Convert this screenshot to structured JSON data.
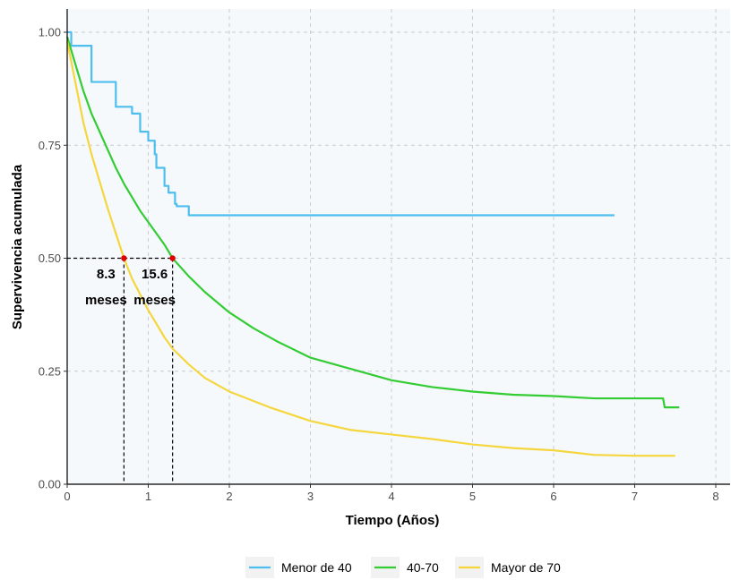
{
  "chart_data": {
    "type": "line",
    "title": "",
    "xlabel": "Tiempo (Años)",
    "ylabel": "Supervivencia acumulada",
    "xlim": [
      0,
      8
    ],
    "ylim": [
      0,
      1
    ],
    "x_ticks": [
      "0",
      "1",
      "2",
      "3",
      "4",
      "5",
      "6",
      "7",
      "8"
    ],
    "y_ticks": [
      "0.00",
      "0.25",
      "0.50",
      "0.75",
      "1.00"
    ],
    "grid": true,
    "legend_position": "bottom",
    "median_line_y": 0.5,
    "annotations": [
      {
        "value": "8.3",
        "unit": "meses",
        "x": 0.7
      },
      {
        "value": "15.6",
        "unit": "meses",
        "x": 1.3
      }
    ],
    "series": [
      {
        "name": "Menor de 40",
        "color": "#4ebeee",
        "step": true,
        "points": [
          [
            0,
            1.0
          ],
          [
            0.05,
            0.97
          ],
          [
            0.25,
            0.97
          ],
          [
            0.3,
            0.89
          ],
          [
            0.55,
            0.89
          ],
          [
            0.6,
            0.835
          ],
          [
            0.78,
            0.835
          ],
          [
            0.8,
            0.82
          ],
          [
            0.87,
            0.82
          ],
          [
            0.9,
            0.78
          ],
          [
            0.97,
            0.78
          ],
          [
            1.0,
            0.76
          ],
          [
            1.05,
            0.76
          ],
          [
            1.08,
            0.73
          ],
          [
            1.1,
            0.7
          ],
          [
            1.18,
            0.7
          ],
          [
            1.2,
            0.66
          ],
          [
            1.25,
            0.645
          ],
          [
            1.3,
            0.645
          ],
          [
            1.33,
            0.62
          ],
          [
            1.35,
            0.615
          ],
          [
            1.48,
            0.615
          ],
          [
            1.5,
            0.595
          ],
          [
            6.75,
            0.595
          ]
        ]
      },
      {
        "name": "40-70",
        "color": "#33cc33",
        "step": false,
        "points": [
          [
            0,
            0.99
          ],
          [
            0.1,
            0.93
          ],
          [
            0.2,
            0.87
          ],
          [
            0.3,
            0.82
          ],
          [
            0.4,
            0.78
          ],
          [
            0.5,
            0.74
          ],
          [
            0.6,
            0.7
          ],
          [
            0.7,
            0.665
          ],
          [
            0.8,
            0.635
          ],
          [
            0.9,
            0.605
          ],
          [
            1.0,
            0.58
          ],
          [
            1.1,
            0.555
          ],
          [
            1.2,
            0.53
          ],
          [
            1.3,
            0.5
          ],
          [
            1.4,
            0.48
          ],
          [
            1.5,
            0.46
          ],
          [
            1.7,
            0.425
          ],
          [
            2.0,
            0.38
          ],
          [
            2.3,
            0.345
          ],
          [
            2.6,
            0.315
          ],
          [
            3.0,
            0.28
          ],
          [
            3.5,
            0.255
          ],
          [
            4.0,
            0.23
          ],
          [
            4.5,
            0.215
          ],
          [
            5.0,
            0.205
          ],
          [
            5.5,
            0.198
          ],
          [
            6.0,
            0.195
          ],
          [
            6.5,
            0.19
          ],
          [
            7.0,
            0.19
          ],
          [
            7.35,
            0.19
          ],
          [
            7.37,
            0.17
          ],
          [
            7.55,
            0.17
          ]
        ]
      },
      {
        "name": "Mayor de 70",
        "color": "#f5d63d",
        "step": false,
        "points": [
          [
            0,
            0.98
          ],
          [
            0.1,
            0.89
          ],
          [
            0.2,
            0.8
          ],
          [
            0.3,
            0.73
          ],
          [
            0.4,
            0.67
          ],
          [
            0.5,
            0.61
          ],
          [
            0.6,
            0.555
          ],
          [
            0.7,
            0.5
          ],
          [
            0.8,
            0.455
          ],
          [
            0.9,
            0.42
          ],
          [
            1.0,
            0.385
          ],
          [
            1.1,
            0.355
          ],
          [
            1.2,
            0.325
          ],
          [
            1.3,
            0.3
          ],
          [
            1.5,
            0.265
          ],
          [
            1.7,
            0.235
          ],
          [
            2.0,
            0.205
          ],
          [
            2.5,
            0.17
          ],
          [
            3.0,
            0.14
          ],
          [
            3.5,
            0.12
          ],
          [
            4.0,
            0.11
          ],
          [
            4.5,
            0.1
          ],
          [
            5.0,
            0.088
          ],
          [
            5.5,
            0.08
          ],
          [
            6.0,
            0.075
          ],
          [
            6.5,
            0.065
          ],
          [
            7.0,
            0.063
          ],
          [
            7.5,
            0.063
          ]
        ]
      }
    ]
  }
}
